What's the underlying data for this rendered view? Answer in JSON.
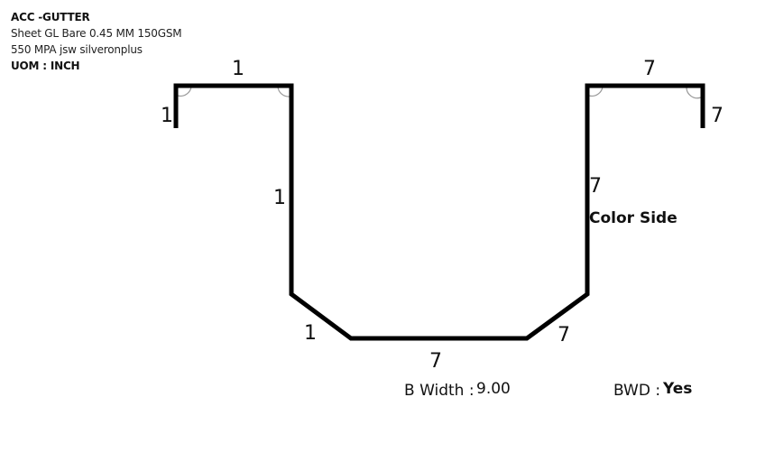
{
  "header": {
    "title": "ACC -GUTTER",
    "sheet": "Sheet GL Bare 0.45 MM 150GSM",
    "material": "550 MPA jsw silveronplus",
    "uom": "UOM : INCH"
  },
  "dimensions": {
    "left_lip": "1",
    "left_top_flange": "1",
    "left_wall": "1",
    "left_chamfer": "1",
    "base": "7",
    "right_chamfer": "7",
    "right_wall": "7",
    "right_top_flange": "7",
    "right_lip": "7"
  },
  "color_side": "Color Side",
  "footer": {
    "b_width_label": "B Width :",
    "b_width_value": "9.00",
    "bwd_label": "BWD :",
    "bwd_value": "Yes"
  }
}
